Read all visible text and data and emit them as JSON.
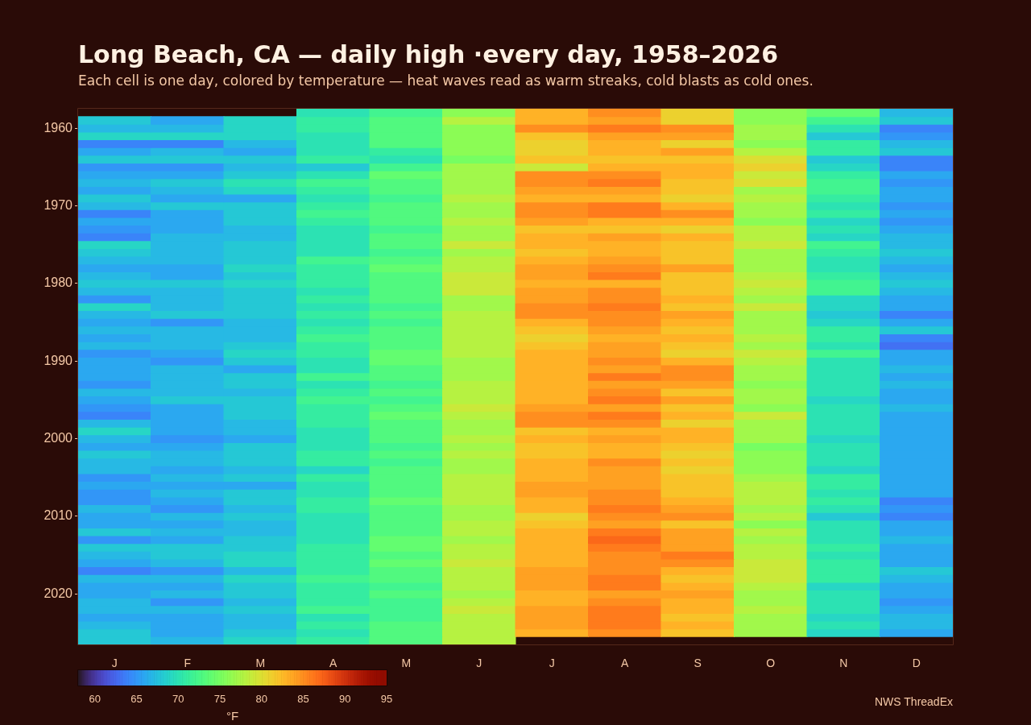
{
  "chart_data": {
    "type": "heatmap",
    "title": "Long Beach, CA — daily high ·every day, 1958–2026",
    "subtitle": "Each cell is one day, colored by temperature — heat waves read as warm streaks, cold blasts as cold ones.",
    "categories": [
      "J",
      "F",
      "M",
      "A",
      "M",
      "J",
      "J",
      "A",
      "S",
      "O",
      "N",
      "D"
    ],
    "y_categories": [
      null,
      null,
      "1960",
      null,
      null,
      null,
      null,
      null,
      null,
      null,
      null,
      null,
      "1970",
      null,
      null,
      null,
      null,
      null,
      null,
      null,
      null,
      null,
      "1980",
      null,
      null,
      null,
      null,
      null,
      null,
      null,
      null,
      null,
      "1990",
      null,
      null,
      null,
      null,
      null,
      null,
      null,
      null,
      null,
      "2000",
      null,
      null,
      null,
      null,
      null,
      null,
      null,
      null,
      null,
      "2010",
      null,
      null,
      null,
      null,
      null,
      null,
      null,
      null,
      null,
      "2020",
      null,
      null,
      null,
      null,
      null,
      null
    ],
    "cells": [
      [
        null,
        null,
        null,
        70,
        72,
        76,
        83,
        85,
        81,
        76,
        74,
        67
      ],
      [
        68,
        66,
        69,
        71,
        73,
        78,
        83,
        84,
        81,
        76,
        72,
        68
      ],
      [
        67,
        67,
        69,
        71,
        73,
        76,
        85,
        86,
        85,
        77,
        70,
        64
      ],
      [
        69,
        69,
        69,
        70,
        73,
        76,
        82,
        84,
        84,
        77,
        68,
        65
      ],
      [
        64,
        64,
        67,
        70,
        73,
        76,
        81,
        83,
        81,
        76,
        71,
        67
      ],
      [
        66,
        67,
        66,
        70,
        71,
        76,
        81,
        83,
        84,
        78,
        71,
        68
      ],
      [
        68,
        68,
        68,
        71,
        70,
        75,
        82,
        82,
        82,
        80,
        68,
        64
      ],
      [
        65,
        65,
        67,
        68,
        72,
        77,
        79,
        83,
        83,
        81,
        69,
        64
      ],
      [
        66,
        66,
        68,
        70,
        74,
        77,
        85,
        85,
        83,
        79,
        71,
        66
      ],
      [
        67,
        68,
        70,
        72,
        73,
        77,
        85,
        86,
        82,
        80,
        72,
        65
      ],
      [
        66,
        67,
        69,
        71,
        73,
        77,
        84,
        84,
        82,
        77,
        72,
        66
      ],
      [
        68,
        66,
        66,
        70,
        72,
        78,
        83,
        83,
        81,
        78,
        71,
        66
      ],
      [
        67,
        68,
        68,
        71,
        73,
        77,
        85,
        86,
        83,
        77,
        70,
        65
      ],
      [
        64,
        66,
        68,
        72,
        73,
        77,
        85,
        86,
        85,
        77,
        71,
        66
      ],
      [
        66,
        66,
        68,
        71,
        73,
        78,
        84,
        83,
        83,
        76,
        69,
        65
      ],
      [
        65,
        66,
        67,
        70,
        72,
        77,
        82,
        82,
        81,
        78,
        70,
        66
      ],
      [
        64,
        67,
        67,
        70,
        73,
        77,
        83,
        84,
        83,
        78,
        69,
        67
      ],
      [
        69,
        67,
        68,
        70,
        73,
        79,
        83,
        83,
        82,
        79,
        72,
        67
      ],
      [
        68,
        67,
        68,
        70,
        72,
        77,
        82,
        83,
        82,
        77,
        71,
        68
      ],
      [
        67,
        67,
        68,
        72,
        73,
        78,
        83,
        84,
        82,
        77,
        70,
        67
      ],
      [
        66,
        66,
        69,
        71,
        74,
        78,
        84,
        85,
        84,
        77,
        70,
        66
      ],
      [
        67,
        66,
        68,
        71,
        73,
        79,
        84,
        86,
        82,
        78,
        71,
        67
      ],
      [
        68,
        68,
        69,
        71,
        73,
        79,
        83,
        83,
        82,
        79,
        72,
        68
      ],
      [
        67,
        67,
        68,
        70,
        73,
        79,
        84,
        85,
        82,
        78,
        72,
        67
      ],
      [
        65,
        67,
        68,
        71,
        73,
        77,
        84,
        85,
        83,
        77,
        69,
        66
      ],
      [
        69,
        67,
        68,
        70,
        72,
        77,
        85,
        86,
        82,
        79,
        69,
        66
      ],
      [
        67,
        68,
        68,
        71,
        73,
        78,
        85,
        85,
        84,
        77,
        68,
        64
      ],
      [
        66,
        65,
        67,
        70,
        72,
        78,
        83,
        85,
        83,
        77,
        69,
        66
      ],
      [
        67,
        67,
        67,
        71,
        73,
        78,
        82,
        84,
        82,
        77,
        71,
        68
      ],
      [
        66,
        67,
        67,
        72,
        73,
        78,
        81,
        83,
        83,
        78,
        71,
        64
      ],
      [
        67,
        67,
        68,
        71,
        73,
        78,
        82,
        84,
        82,
        77,
        70,
        63
      ],
      [
        65,
        66,
        69,
        71,
        74,
        78,
        83,
        84,
        81,
        79,
        72,
        66
      ],
      [
        66,
        65,
        68,
        70,
        74,
        77,
        83,
        85,
        83,
        78,
        70,
        66
      ],
      [
        66,
        67,
        66,
        70,
        73,
        77,
        83,
        84,
        85,
        77,
        70,
        67
      ],
      [
        66,
        67,
        68,
        72,
        73,
        77,
        83,
        86,
        85,
        77,
        70,
        66
      ],
      [
        65,
        67,
        68,
        70,
        72,
        78,
        83,
        84,
        84,
        76,
        70,
        67
      ],
      [
        67,
        67,
        67,
        71,
        73,
        78,
        83,
        85,
        82,
        77,
        70,
        66
      ],
      [
        66,
        68,
        68,
        72,
        72,
        78,
        83,
        86,
        84,
        77,
        69,
        66
      ],
      [
        65,
        66,
        68,
        71,
        73,
        79,
        84,
        84,
        82,
        76,
        70,
        67
      ],
      [
        64,
        66,
        68,
        71,
        74,
        78,
        85,
        86,
        83,
        79,
        70,
        66
      ],
      [
        67,
        66,
        67,
        71,
        73,
        77,
        85,
        85,
        81,
        77,
        70,
        66
      ],
      [
        69,
        66,
        67,
        70,
        73,
        77,
        82,
        83,
        83,
        77,
        70,
        66
      ],
      [
        67,
        65,
        66,
        70,
        73,
        78,
        83,
        84,
        83,
        77,
        69,
        66
      ],
      [
        66,
        66,
        68,
        70,
        72,
        77,
        82,
        83,
        82,
        75,
        70,
        66
      ],
      [
        68,
        67,
        68,
        71,
        73,
        78,
        82,
        83,
        81,
        76,
        70,
        66
      ],
      [
        67,
        67,
        68,
        71,
        72,
        77,
        83,
        85,
        82,
        76,
        70,
        66
      ],
      [
        67,
        66,
        67,
        69,
        73,
        77,
        83,
        84,
        81,
        76,
        69,
        66
      ],
      [
        65,
        67,
        68,
        71,
        73,
        78,
        83,
        84,
        82,
        77,
        71,
        66
      ],
      [
        66,
        66,
        66,
        70,
        73,
        78,
        84,
        84,
        82,
        78,
        71,
        66
      ],
      [
        65,
        67,
        68,
        70,
        73,
        78,
        84,
        85,
        82,
        78,
        70,
        66
      ],
      [
        65,
        66,
        68,
        71,
        74,
        78,
        83,
        85,
        83,
        78,
        71,
        64
      ],
      [
        67,
        65,
        67,
        71,
        73,
        77,
        83,
        86,
        84,
        77,
        70,
        65
      ],
      [
        66,
        67,
        68,
        70,
        73,
        77,
        81,
        85,
        85,
        78,
        68,
        64
      ],
      [
        66,
        66,
        67,
        70,
        73,
        78,
        82,
        84,
        82,
        76,
        70,
        66
      ],
      [
        68,
        67,
        67,
        70,
        73,
        78,
        83,
        86,
        84,
        78,
        70,
        66
      ],
      [
        65,
        66,
        68,
        70,
        74,
        77,
        83,
        87,
        84,
        77,
        70,
        67
      ],
      [
        68,
        68,
        68,
        71,
        74,
        78,
        83,
        86,
        84,
        78,
        71,
        66
      ],
      [
        67,
        68,
        69,
        71,
        73,
        78,
        83,
        85,
        86,
        78,
        70,
        66
      ],
      [
        66,
        67,
        69,
        71,
        74,
        79,
        83,
        85,
        85,
        79,
        71,
        66
      ],
      [
        64,
        65,
        67,
        71,
        73,
        78,
        84,
        85,
        83,
        79,
        71,
        68
      ],
      [
        67,
        67,
        69,
        72,
        73,
        78,
        84,
        86,
        82,
        79,
        71,
        67
      ],
      [
        66,
        66,
        68,
        71,
        72,
        78,
        84,
        86,
        83,
        78,
        69,
        66
      ],
      [
        66,
        67,
        68,
        71,
        73,
        77,
        83,
        84,
        84,
        77,
        70,
        66
      ],
      [
        67,
        65,
        67,
        71,
        72,
        78,
        83,
        85,
        83,
        77,
        70,
        65
      ],
      [
        67,
        67,
        68,
        72,
        72,
        79,
        84,
        86,
        83,
        78,
        70,
        66
      ],
      [
        66,
        66,
        67,
        70,
        72,
        78,
        84,
        86,
        82,
        77,
        69,
        67
      ],
      [
        67,
        66,
        67,
        71,
        73,
        78,
        84,
        86,
        83,
        77,
        70,
        67
      ],
      [
        68,
        66,
        68,
        70,
        73,
        78,
        83,
        85,
        82,
        77,
        69,
        66
      ],
      [
        68,
        67,
        69,
        71,
        73,
        78,
        null,
        null,
        null,
        null,
        null,
        null
      ]
    ],
    "clim": [
      58,
      95
    ],
    "cticks": [
      60,
      65,
      70,
      75,
      80,
      85,
      90,
      95
    ],
    "clabel": "°F",
    "annotations": [
      "NWS ThreadEx"
    ]
  }
}
